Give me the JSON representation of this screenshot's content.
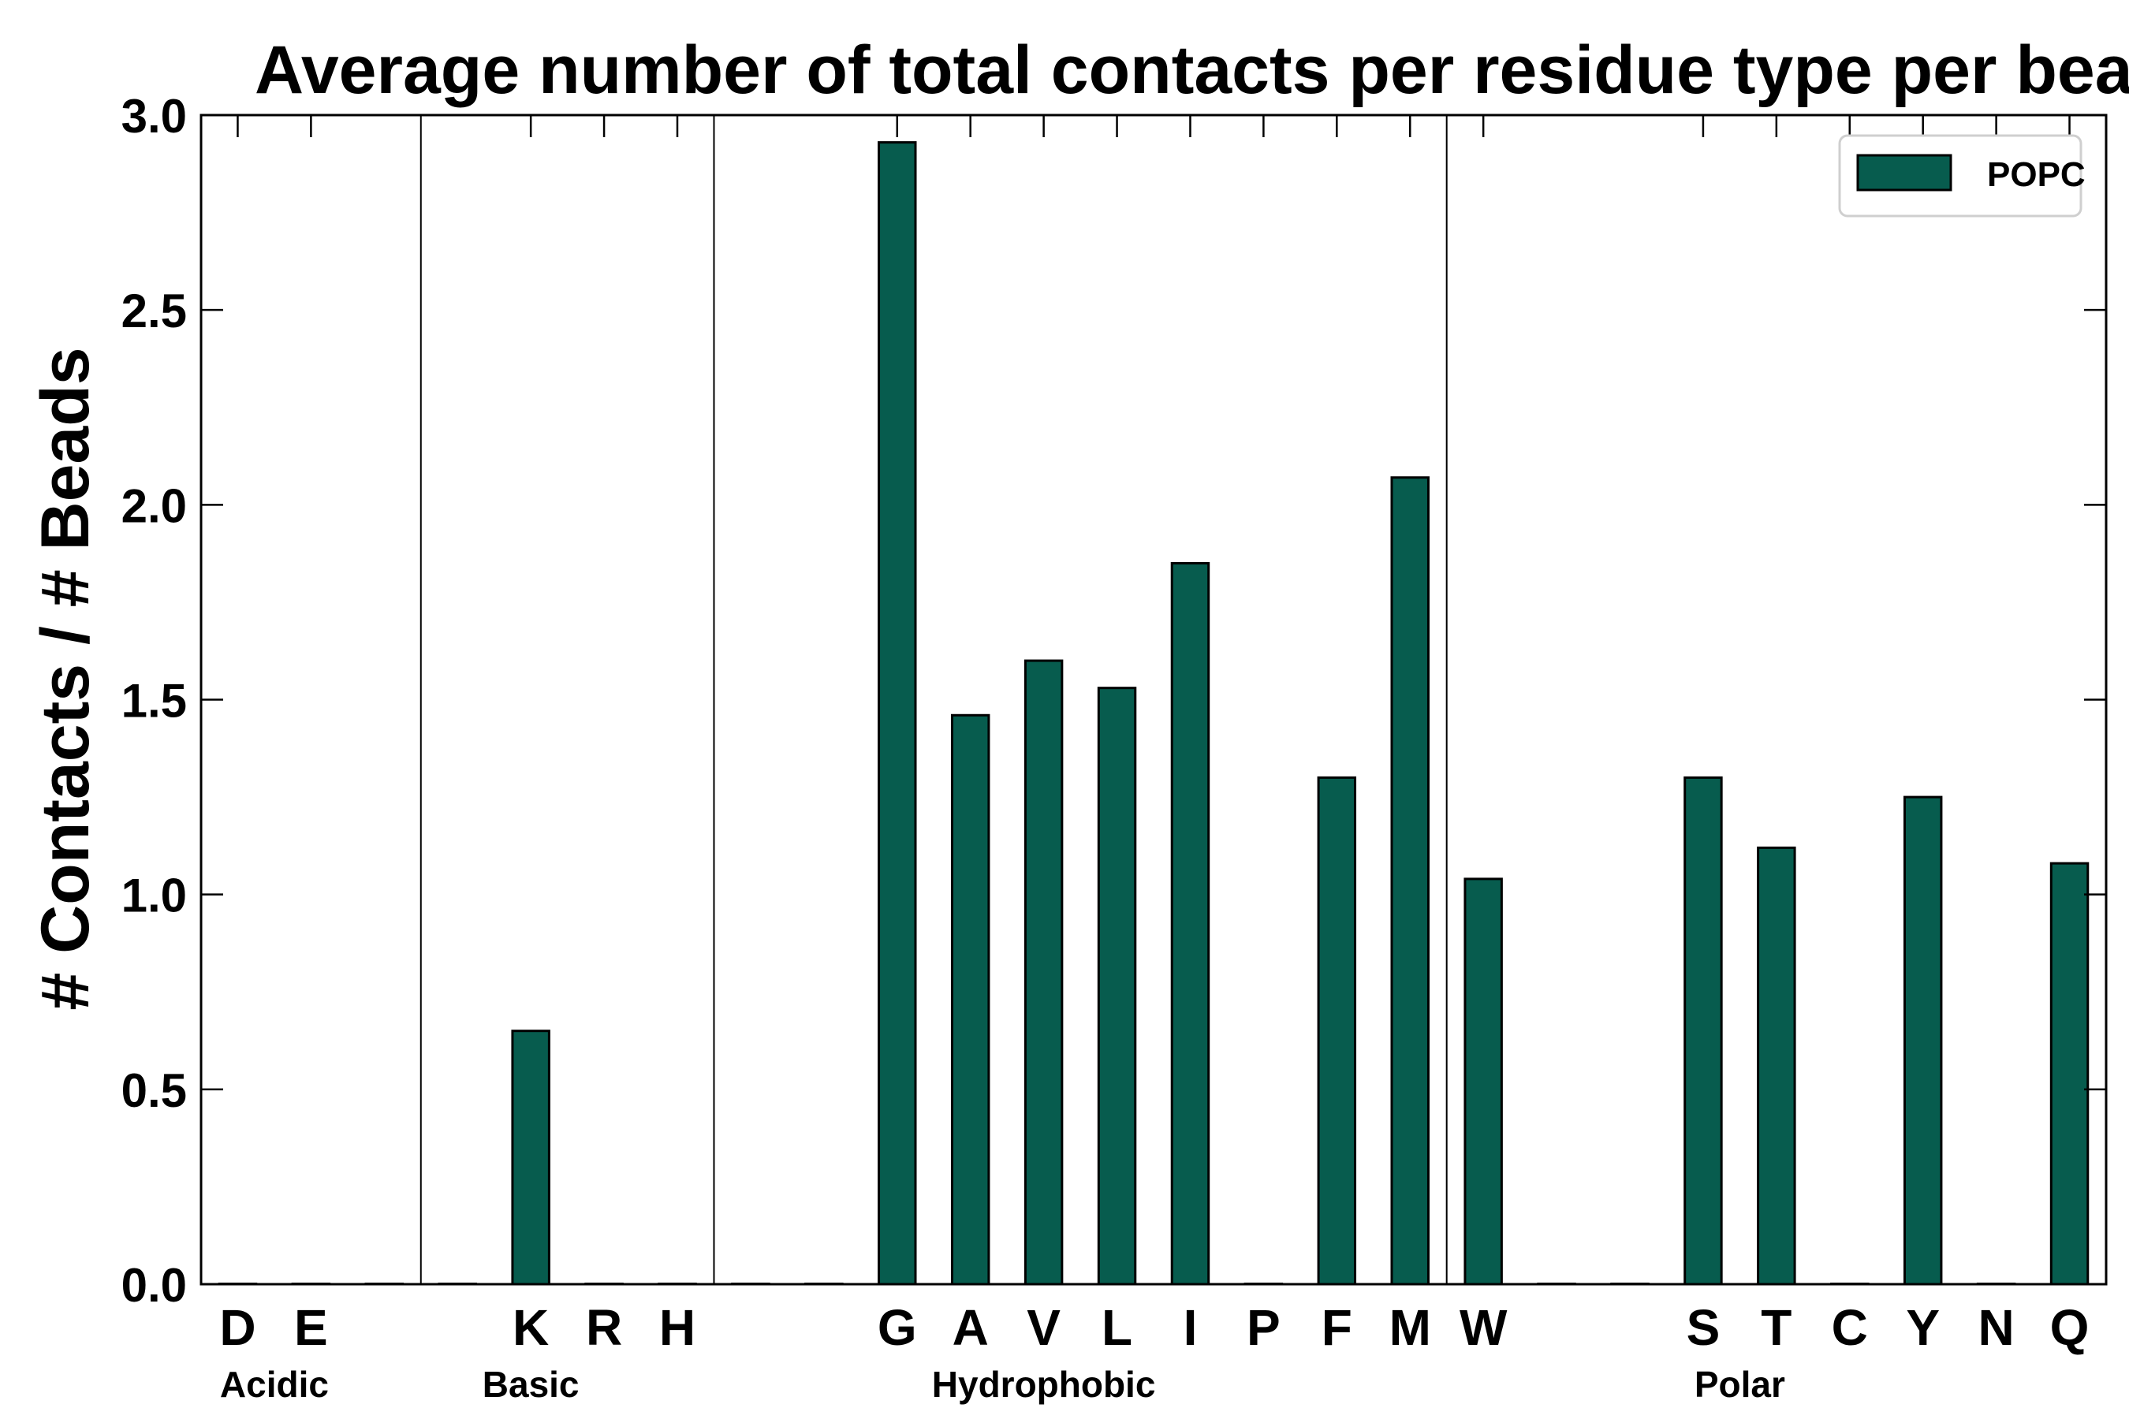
{
  "chart_data": {
    "type": "bar",
    "title": "Average number of total contacts per residue type per bead",
    "xlabel": "",
    "ylabel": "# Contacts / # Beads",
    "ylim": [
      0,
      3.0
    ],
    "yticks": [
      "0.0",
      "0.5",
      "1.0",
      "1.5",
      "2.0",
      "2.5",
      "3.0"
    ],
    "grid": false,
    "legend_position": "top-right",
    "bar_color": "#075c4e",
    "slots": [
      {
        "label": "D",
        "value": 0.0
      },
      {
        "label": "E",
        "value": 0.0
      },
      {
        "label": "",
        "value": 0.0
      },
      {
        "label": "",
        "value": 0.0
      },
      {
        "label": "K",
        "value": 0.65
      },
      {
        "label": "R",
        "value": 0.0
      },
      {
        "label": "H",
        "value": 0.0
      },
      {
        "label": "",
        "value": 0.0
      },
      {
        "label": "",
        "value": 0.0
      },
      {
        "label": "G",
        "value": 2.93
      },
      {
        "label": "A",
        "value": 1.46
      },
      {
        "label": "V",
        "value": 1.6
      },
      {
        "label": "L",
        "value": 1.53
      },
      {
        "label": "I",
        "value": 1.85
      },
      {
        "label": "P",
        "value": 0.0
      },
      {
        "label": "F",
        "value": 1.3
      },
      {
        "label": "M",
        "value": 2.07
      },
      {
        "label": "W",
        "value": 1.04
      },
      {
        "label": "",
        "value": 0.0
      },
      {
        "label": "",
        "value": 0.0
      },
      {
        "label": "S",
        "value": 1.3
      },
      {
        "label": "T",
        "value": 1.12
      },
      {
        "label": "C",
        "value": 0.0
      },
      {
        "label": "Y",
        "value": 1.25
      },
      {
        "label": "N",
        "value": 0.0
      },
      {
        "label": "Q",
        "value": 1.08
      }
    ],
    "series": [
      {
        "name": "POPC"
      }
    ],
    "group_labels": [
      {
        "name": "Acidic",
        "center_slot": 0.5
      },
      {
        "name": "Basic",
        "center_slot": 4.0
      },
      {
        "name": "Hydrophobic",
        "center_slot": 11.0
      },
      {
        "name": "Polar",
        "center_slot": 20.5
      }
    ],
    "separators_after_slot": [
      2,
      6,
      16
    ]
  }
}
